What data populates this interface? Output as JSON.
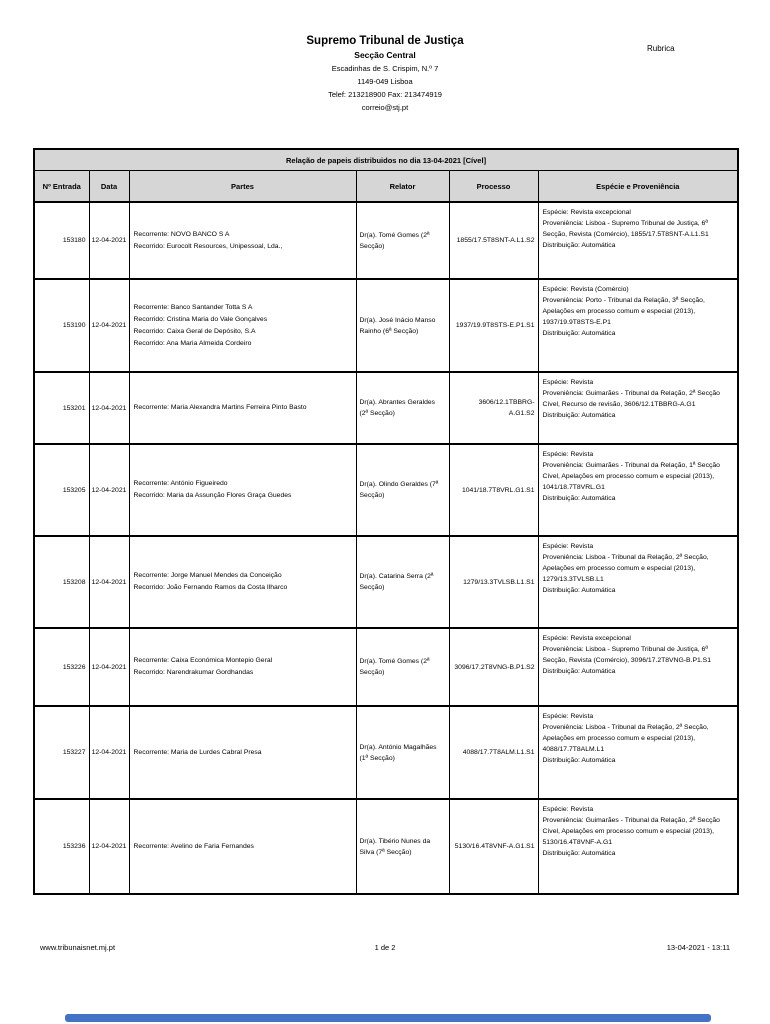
{
  "header": {
    "org_name": "Supremo Tribunal de Justiça",
    "department": "Secção Central",
    "address_line1": "Escadinhas de S. Crispim, N.º 7",
    "address_line2": "1149-049 Lisboa",
    "phone_fax": "Telef: 213218900   Fax: 213474919",
    "email": "correio@stj.pt",
    "rubrica_label": "Rubrica"
  },
  "table": {
    "title": "Relação de papeis distribuidos no dia 13-04-2021 [Cível]",
    "columns": [
      "Nº Entrada",
      "Data",
      "Partes",
      "Relator",
      "Processo",
      "Espécie e Proveniência"
    ],
    "rows": [
      {
        "entrada": "153180",
        "data": "12-04-2021",
        "partes": [
          "Recorrente: NOVO BANCO S A",
          "Recorrido: Eurocolt Resources, Unipessoal, Lda.,"
        ],
        "relator": "Dr(a). Tomé Gomes (2ª Secção)",
        "processo": "1855/17.5T8SNT-A.L1.S2",
        "especie": [
          "Espécie: Revista excepcional",
          "Proveniência: Lisboa - Supremo Tribunal de Justiça, 6ª Secção, Revista (Comércio), 1855/17.5T8SNT-A.L1.S1",
          "Distribuição: Automática"
        ]
      },
      {
        "entrada": "153190",
        "data": "12-04-2021",
        "partes": [
          "Recorrente: Banco Santander Totta S A",
          "Recorrido: Cristina Maria do Vale Gonçalves",
          "Recorrido: Caixa Geral de Depósito, S.A",
          "Recorrido: Ana Maria Almeida Cordeiro"
        ],
        "relator": "Dr(a). José Inácio Manso Rainho (6ª Secção)",
        "processo": "1937/19.9T8STS-E.P1.S1",
        "especie": [
          "Espécie: Revista (Comércio)",
          "Proveniência: Porto - Tribunal da Relação, 3ª Secção, Apelações em processo comum e especial (2013), 1937/19.9T8STS-E.P1",
          "Distribuição: Automática"
        ]
      },
      {
        "entrada": "153201",
        "data": "12-04-2021",
        "partes": [
          "Recorrente: Maria Alexandra Martins Ferreira Pinto Basto"
        ],
        "relator": "Dr(a). Abrantes Geraldes (2ª Secção)",
        "processo": "3606/12.1TBBRG-A.G1.S2",
        "especie": [
          "Espécie: Revista",
          "Proveniência: Guimarães - Tribunal da Relação, 2ª Secção Cível, Recurso de revisão, 3606/12.1TBBRG-A.G1",
          "Distribuição: Automática"
        ]
      },
      {
        "entrada": "153205",
        "data": "12-04-2021",
        "partes": [
          "Recorrente: António Figueiredo",
          "Recorrido: Maria da Assunção Flores Graça Guedes"
        ],
        "relator": "Dr(a). Olindo Geraldes (7ª Secção)",
        "processo": "1041/18.7T8VRL.G1.S1",
        "especie": [
          "Espécie: Revista",
          "Proveniência: Guimarães - Tribunal da Relação, 1ª Secção Cível, Apelações em processo comum e especial (2013), 1041/18.7T8VRL.G1",
          "Distribuição: Automática"
        ]
      },
      {
        "entrada": "153208",
        "data": "12-04-2021",
        "partes": [
          "Recorrente: Jorge Manuel Mendes da Conceição",
          "Recorrido: João Fernando Ramos da Costa Ilharco"
        ],
        "relator": "Dr(a). Catarina Serra (2ª Secção)",
        "processo": "1279/13.3TVLSB.L1.S1",
        "especie": [
          "Espécie: Revista",
          "Proveniência: Lisboa - Tribunal da Relação, 2ª Secção, Apelações em processo comum e especial (2013), 1279/13.3TVLSB.L1",
          "Distribuição: Automática"
        ]
      },
      {
        "entrada": "153226",
        "data": "12-04-2021",
        "partes": [
          "Recorrente: Caixa Económica Montepio Geral",
          "Recorrido: Narendrakumar Gordhandas"
        ],
        "relator": "Dr(a). Tomé Gomes (2ª Secção)",
        "processo": "3096/17.2T8VNG-B.P1.S2",
        "especie": [
          "Espécie: Revista excepcional",
          "Proveniência: Lisboa - Supremo Tribunal de Justiça, 6ª Secção, Revista (Comércio), 3096/17.2T8VNG-B.P1.S1",
          "Distribuição: Automática"
        ]
      },
      {
        "entrada": "153227",
        "data": "12-04-2021",
        "partes": [
          "Recorrente: Maria de Lurdes Cabral Presa"
        ],
        "relator": "Dr(a). António Magalhães (1ª Secção)",
        "processo": "4088/17.7T8ALM.L1.S1",
        "especie": [
          "Espécie: Revista",
          "Proveniência: Lisboa - Tribunal da Relação, 2ª Secção, Apelações em processo comum e especial (2013), 4088/17.7T8ALM.L1",
          "Distribuição: Automática"
        ]
      },
      {
        "entrada": "153236",
        "data": "12-04-2021",
        "partes": [
          "Recorrente: Avelino de Faria Fernandes"
        ],
        "relator": "Dr(a). Tibério Nunes da Silva (7ª Secção)",
        "processo": "5130/16.4T8VNF-A.G1.S1",
        "especie": [
          "Espécie: Revista",
          "Proveniência: Guimarães - Tribunal da Relação, 2ª Secção Cível, Apelações em processo comum e especial (2013), 5130/16.4T8VNF-A.G1",
          "Distribuição: Automática"
        ]
      }
    ]
  },
  "footer": {
    "website": "www.tribunaisnet.mj.pt",
    "page": "1 de 2",
    "datetime": "13-04-2021 - 13:11"
  },
  "colors": {
    "header_bg": "#d6d6d6",
    "scrollbar": "#4472c4"
  }
}
